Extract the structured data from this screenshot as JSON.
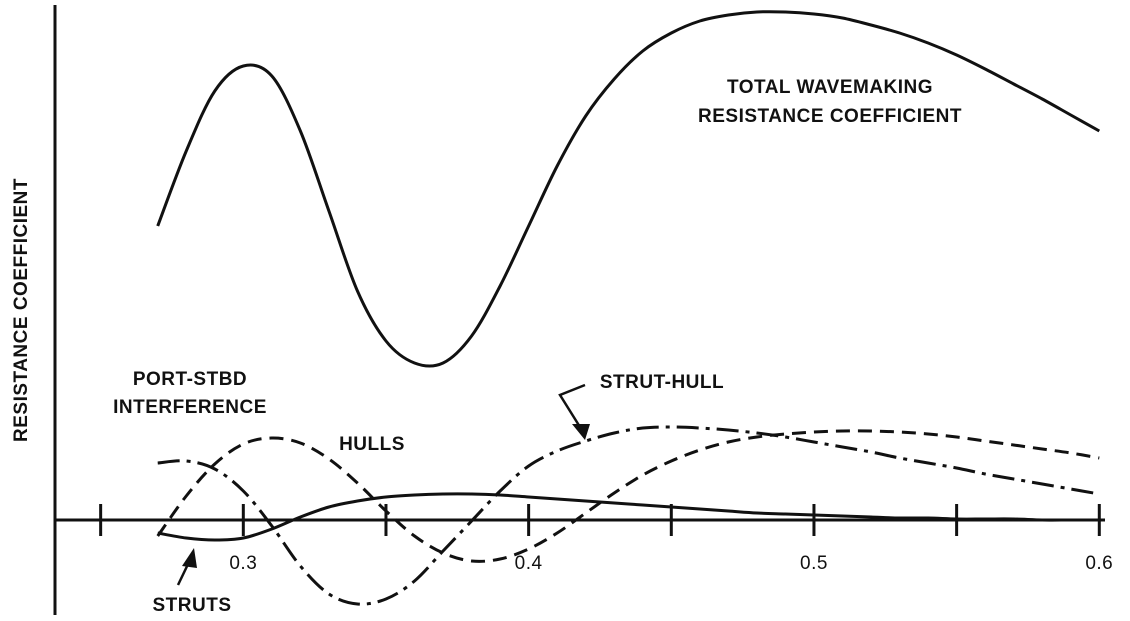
{
  "chart_data": {
    "type": "line",
    "ylabel": "RESISTANCE COEFFICIENT",
    "x": [
      0.27,
      0.28,
      0.29,
      0.3,
      0.31,
      0.32,
      0.33,
      0.34,
      0.35,
      0.36,
      0.37,
      0.38,
      0.39,
      0.4,
      0.41,
      0.42,
      0.43,
      0.44,
      0.45,
      0.46,
      0.47,
      0.48,
      0.49,
      0.5,
      0.51,
      0.52,
      0.53,
      0.54,
      0.55,
      0.56,
      0.57,
      0.58,
      0.59,
      0.6
    ],
    "series": [
      {
        "color": "#111111",
        "style": "solid",
        "values": [
          29.4,
          36.9,
          42.9,
          45.4,
          44.4,
          38.9,
          30.9,
          22.9,
          17.9,
          15.7,
          15.7,
          18.4,
          23.4,
          29.4,
          35.4,
          40.4,
          44.1,
          46.9,
          48.7,
          49.9,
          50.5,
          50.8,
          50.8,
          50.6,
          50.2,
          49.5,
          48.7,
          47.7,
          46.5,
          45.1,
          43.6,
          42.1,
          40.5,
          38.9
        ]
      },
      {
        "color": "#111111",
        "style": "dashed",
        "values": [
          -1.6,
          2.4,
          5.6,
          7.6,
          8.2,
          7.7,
          6.1,
          3.7,
          0.9,
          -1.6,
          -3.3,
          -4.1,
          -3.9,
          -2.9,
          -1.3,
          0.7,
          2.7,
          4.5,
          5.9,
          7.0,
          7.8,
          8.3,
          8.6,
          8.8,
          8.9,
          8.9,
          8.8,
          8.6,
          8.3,
          7.9,
          7.5,
          7.1,
          6.7,
          6.2
        ]
      },
      {
        "color": "#111111",
        "style": "dashdot",
        "values": [
          5.7,
          5.9,
          5.1,
          2.9,
          -0.6,
          -4.6,
          -7.4,
          -8.4,
          -7.9,
          -6.1,
          -3.1,
          -0.1,
          2.9,
          5.4,
          6.9,
          7.9,
          8.7,
          9.2,
          9.3,
          9.2,
          9.0,
          8.7,
          8.3,
          7.8,
          7.3,
          6.8,
          6.2,
          5.7,
          5.2,
          4.6,
          4.1,
          3.6,
          3.1,
          2.6
        ]
      },
      {
        "color": "#111111",
        "style": "solid",
        "values": [
          -1.3,
          -1.8,
          -2.0,
          -1.8,
          -0.9,
          0.3,
          1.3,
          1.9,
          2.3,
          2.5,
          2.6,
          2.6,
          2.5,
          2.3,
          2.1,
          1.9,
          1.7,
          1.5,
          1.3,
          1.1,
          0.9,
          0.7,
          0.6,
          0.5,
          0.4,
          0.3,
          0.2,
          0.2,
          0.1,
          0.1,
          0.1,
          0,
          0,
          0
        ]
      }
    ],
    "annotations": [
      "TOTAL WAVEMAKING",
      "RESISTANCE COEFFICIENT",
      "PORT-STBD",
      "INTERFERENCE",
      "HULLS",
      "STRUT-HULL",
      "STRUTS"
    ],
    "xlim": [
      0.234,
      0.602
    ],
    "ylim": [
      -9,
      51
    ],
    "xticks": [
      {
        "value": 0.25,
        "label": null
      },
      0.3,
      {
        "value": 0.35,
        "label": null
      },
      0.4,
      {
        "value": 0.45,
        "label": null
      },
      0.5,
      {
        "value": 0.55,
        "label": null
      },
      0.6
    ]
  }
}
